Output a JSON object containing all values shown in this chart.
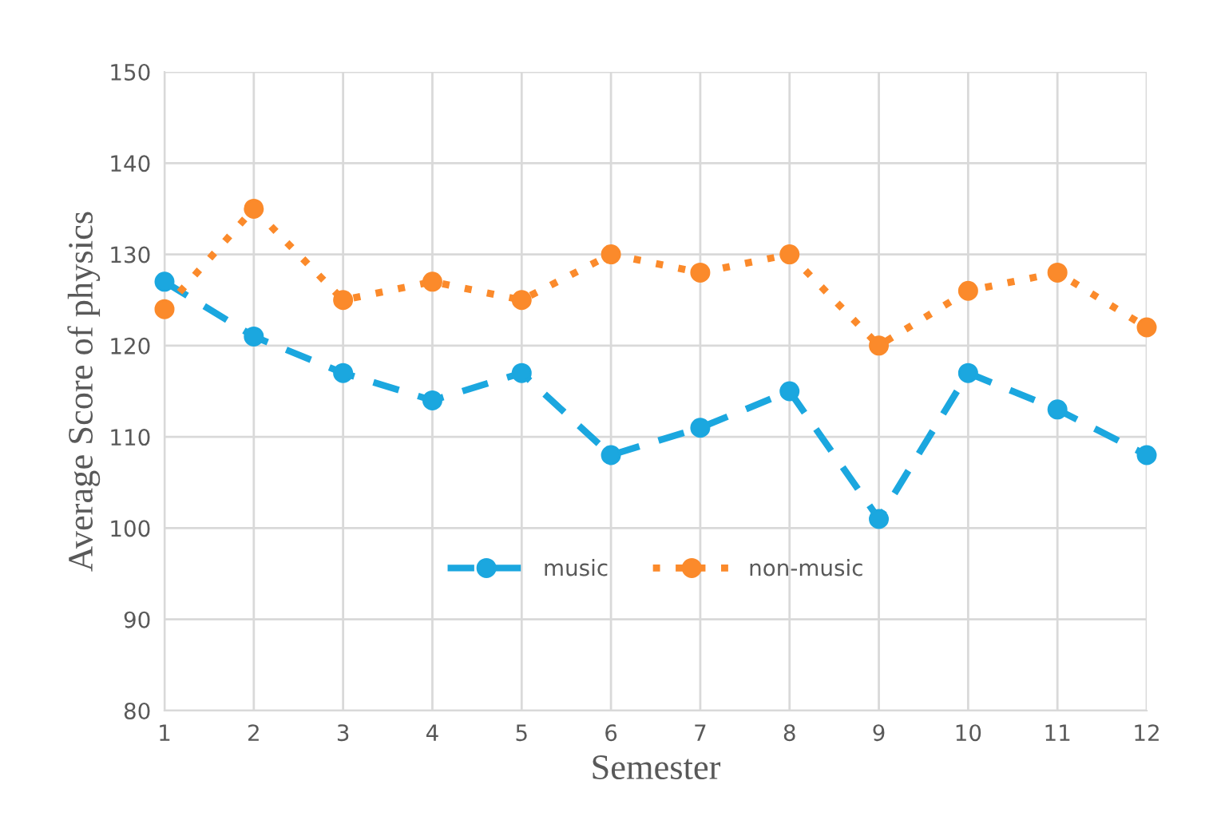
{
  "chart_data": {
    "type": "line",
    "xlabel": "Semester",
    "ylabel": "Average Score of physics",
    "x": [
      1,
      2,
      3,
      4,
      5,
      6,
      7,
      8,
      9,
      10,
      11,
      12
    ],
    "series": [
      {
        "name": "music",
        "color": "#1ba7df",
        "line_style": "dashed",
        "values": [
          127,
          121,
          117,
          114,
          117,
          108,
          111,
          115,
          101,
          117,
          113,
          108
        ]
      },
      {
        "name": "non-music",
        "color": "#fb8a2b",
        "line_style": "dotted",
        "values": [
          124,
          135,
          125,
          127,
          125,
          130,
          128,
          130,
          120,
          126,
          128,
          122
        ]
      }
    ],
    "xlim": [
      1,
      12
    ],
    "xticks": [
      1,
      2,
      3,
      4,
      5,
      6,
      7,
      8,
      9,
      10,
      11,
      12
    ],
    "ylim": [
      80,
      150
    ],
    "yticks": [
      80,
      90,
      100,
      110,
      120,
      130,
      140,
      150
    ],
    "grid": true,
    "legend": "bottom",
    "marker": "circle"
  }
}
